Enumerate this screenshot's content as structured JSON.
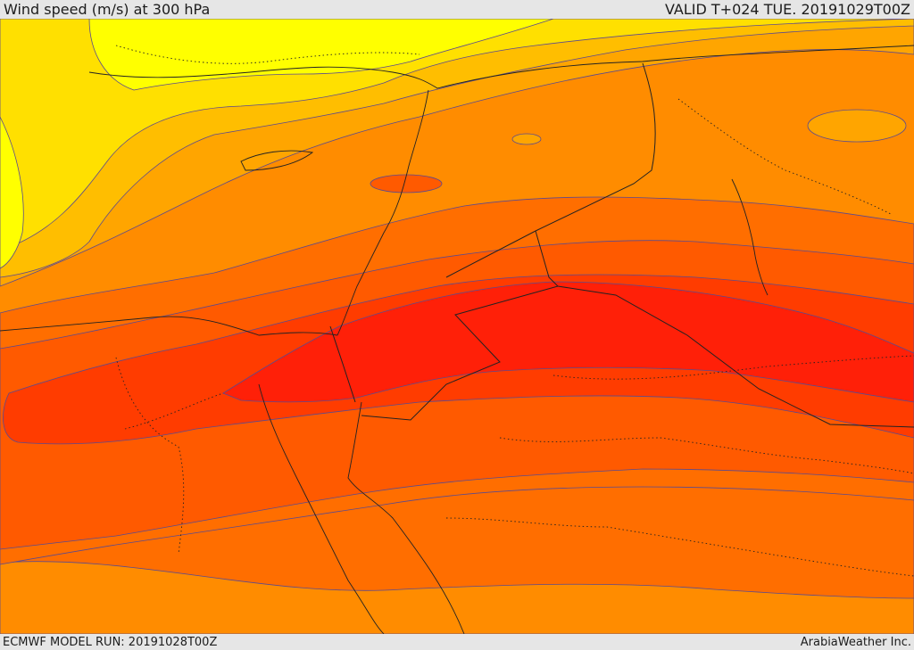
{
  "header": {
    "title": "Wind speed (m/s) at 300 hPa",
    "valid_time": "VALID T+024 TUE. 20191029T00Z"
  },
  "footer": {
    "model_run": "ECMWF MODEL RUN: 20191028T00Z",
    "credit": "ArabiaWeather Inc."
  },
  "colors": {
    "band_core": "#ff2008",
    "band_high": "#ff3c00",
    "band_mid_high": "#ff5a00",
    "band_mid": "#ff6e00",
    "band_low_mid": "#ff8c00",
    "band_low": "#ffa500",
    "band_lower": "#ffbe00",
    "band_lowest": "#ffe000",
    "band_min": "#ffff00",
    "contour_line": "#5b4a8e"
  }
}
